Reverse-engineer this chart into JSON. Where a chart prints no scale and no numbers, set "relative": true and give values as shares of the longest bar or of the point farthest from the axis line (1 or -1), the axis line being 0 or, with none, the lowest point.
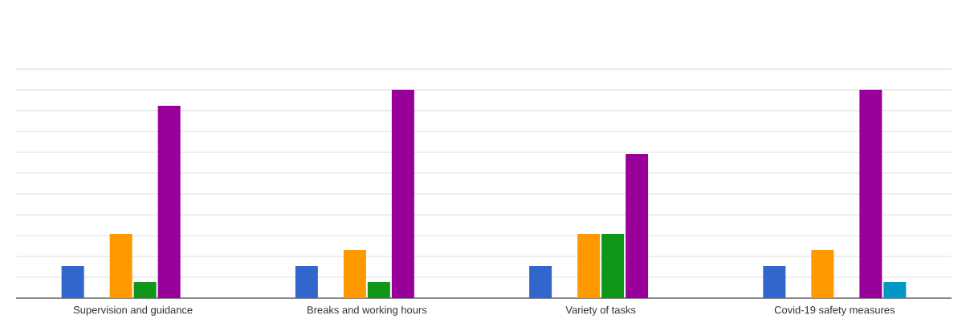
{
  "chart_data": {
    "type": "bar",
    "relative": true,
    "grid": "y",
    "categories": [
      "Supervision and guidance",
      "Breaks and working hours",
      "Variety of tasks",
      "Covid-19 safety measures"
    ],
    "series": [
      {
        "color": "#3366cc",
        "values": [
          0.154,
          0.154,
          0.154,
          0.154
        ]
      },
      {
        "color": "#dc3912",
        "values": [
          0,
          0,
          0,
          0
        ]
      },
      {
        "color": "#ff9900",
        "values": [
          0.308,
          0.231,
          0.308,
          0.231
        ]
      },
      {
        "color": "#109618",
        "values": [
          0.077,
          0.077,
          0.308,
          0
        ]
      },
      {
        "color": "#990099",
        "values": [
          0.923,
          1,
          0.692,
          1
        ]
      },
      {
        "color": "#0099c6",
        "values": [
          0,
          0,
          0,
          0.077
        ]
      }
    ]
  }
}
